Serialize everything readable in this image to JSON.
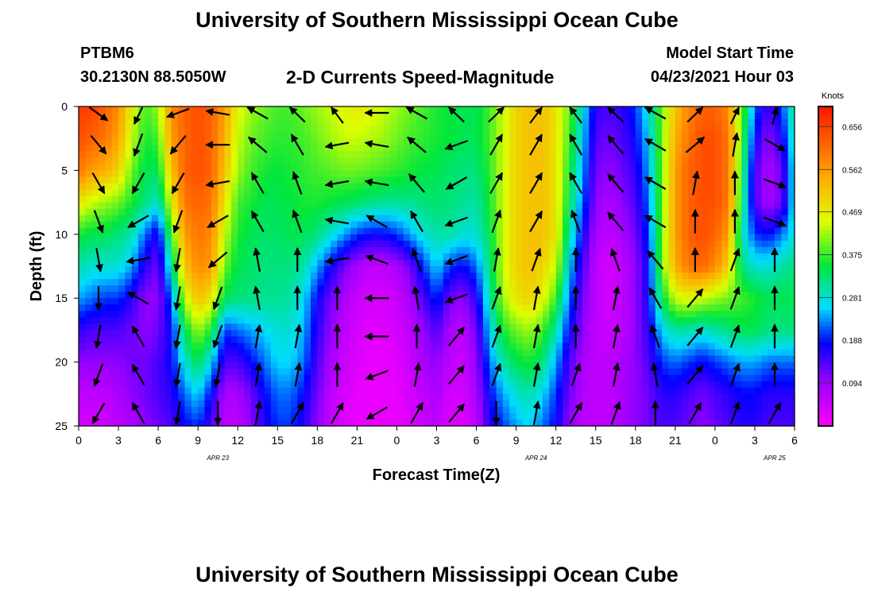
{
  "header": {
    "title": "University of Southern Mississippi Ocean Cube",
    "station": "PTBM6",
    "coordinates": "30.2130N  88.5050W",
    "subtitle": "2-D Currents Speed-Magnitude",
    "model_start_label": "Model Start Time",
    "model_start_value": "04/23/2021 Hour 03"
  },
  "footer": {
    "title": "University of Southern Mississippi Ocean Cube"
  },
  "chart_data": {
    "type": "heatmap",
    "title": "2-D Currents Speed-Magnitude",
    "xlabel": "Forecast Time(Z)",
    "ylabel": "Depth (ft)",
    "x_ticks": [
      "0",
      "3",
      "6",
      "9",
      "12",
      "15",
      "18",
      "21",
      "0",
      "3",
      "6",
      "9",
      "12",
      "15",
      "18",
      "21",
      "0",
      "3",
      "6"
    ],
    "date_labels": [
      {
        "label": "APR  23",
        "tick_index": 3.5
      },
      {
        "label": "APR  24",
        "tick_index": 11.5
      },
      {
        "label": "APR  25",
        "tick_index": 17.5
      }
    ],
    "y_ticks": [
      0,
      5,
      10,
      15,
      20,
      25
    ],
    "ylim": [
      0,
      25
    ],
    "xlim_hours": [
      0,
      54
    ],
    "colorbar": {
      "unit": "Knots",
      "ticks": [
        "0.656",
        "0.562",
        "0.469",
        "0.375",
        "0.281",
        "0.188",
        "0.094"
      ],
      "range": [
        0.0,
        0.7
      ]
    },
    "speed_columns_hours": [
      0,
      1,
      2,
      3,
      4,
      5,
      6,
      7,
      8,
      9,
      10,
      11,
      12,
      13,
      14,
      15,
      16,
      17,
      18,
      19,
      20,
      21,
      22,
      23,
      24,
      25,
      26,
      27,
      28,
      29,
      30,
      31,
      32,
      33,
      34,
      35,
      36,
      37,
      38,
      39,
      40,
      41,
      42,
      43,
      44,
      45,
      46,
      47,
      48,
      49,
      50,
      51,
      52,
      53,
      54
    ],
    "speed_rows_depth_ft": [
      0,
      2.5,
      5,
      7.5,
      10,
      12.5,
      15,
      17.5,
      20,
      22.5,
      25
    ],
    "speed_knots": [
      [
        0.66,
        0.66,
        0.62,
        0.58,
        0.46,
        0.38,
        0.42,
        0.58,
        0.62,
        0.64,
        0.62,
        0.56,
        0.46,
        0.42,
        0.4,
        0.38,
        0.38,
        0.4,
        0.42,
        0.44,
        0.46,
        0.47,
        0.46,
        0.44,
        0.42,
        0.4,
        0.38,
        0.36,
        0.35,
        0.34,
        0.34,
        0.38,
        0.44,
        0.5,
        0.52,
        0.52,
        0.48,
        0.4,
        0.28,
        0.16,
        0.14,
        0.16,
        0.2,
        0.28,
        0.4,
        0.52,
        0.58,
        0.62,
        0.62,
        0.58,
        0.4,
        0.22,
        0.14,
        0.2,
        0.32
      ],
      [
        0.64,
        0.62,
        0.6,
        0.55,
        0.44,
        0.36,
        0.38,
        0.56,
        0.62,
        0.64,
        0.62,
        0.54,
        0.44,
        0.4,
        0.38,
        0.37,
        0.37,
        0.38,
        0.4,
        0.42,
        0.44,
        0.44,
        0.43,
        0.42,
        0.4,
        0.38,
        0.37,
        0.36,
        0.35,
        0.34,
        0.34,
        0.38,
        0.44,
        0.5,
        0.52,
        0.52,
        0.48,
        0.38,
        0.26,
        0.14,
        0.12,
        0.14,
        0.18,
        0.26,
        0.4,
        0.54,
        0.6,
        0.64,
        0.64,
        0.6,
        0.38,
        0.18,
        0.1,
        0.16,
        0.3
      ],
      [
        0.6,
        0.56,
        0.54,
        0.5,
        0.4,
        0.34,
        0.34,
        0.52,
        0.62,
        0.64,
        0.62,
        0.52,
        0.42,
        0.38,
        0.36,
        0.35,
        0.36,
        0.37,
        0.38,
        0.39,
        0.4,
        0.4,
        0.39,
        0.38,
        0.37,
        0.36,
        0.35,
        0.34,
        0.33,
        0.32,
        0.32,
        0.37,
        0.44,
        0.5,
        0.52,
        0.52,
        0.48,
        0.36,
        0.24,
        0.12,
        0.1,
        0.12,
        0.16,
        0.24,
        0.4,
        0.56,
        0.62,
        0.64,
        0.64,
        0.6,
        0.36,
        0.14,
        0.08,
        0.12,
        0.28
      ],
      [
        0.48,
        0.44,
        0.42,
        0.4,
        0.36,
        0.32,
        0.28,
        0.46,
        0.6,
        0.62,
        0.6,
        0.48,
        0.38,
        0.36,
        0.34,
        0.34,
        0.35,
        0.36,
        0.36,
        0.35,
        0.34,
        0.33,
        0.32,
        0.31,
        0.31,
        0.31,
        0.32,
        0.33,
        0.32,
        0.31,
        0.3,
        0.36,
        0.44,
        0.5,
        0.52,
        0.52,
        0.48,
        0.34,
        0.22,
        0.1,
        0.08,
        0.1,
        0.14,
        0.22,
        0.4,
        0.56,
        0.62,
        0.64,
        0.64,
        0.6,
        0.34,
        0.14,
        0.08,
        0.12,
        0.28
      ],
      [
        0.36,
        0.34,
        0.34,
        0.32,
        0.3,
        0.22,
        0.16,
        0.38,
        0.56,
        0.6,
        0.58,
        0.44,
        0.36,
        0.34,
        0.33,
        0.33,
        0.34,
        0.34,
        0.32,
        0.28,
        0.24,
        0.2,
        0.18,
        0.18,
        0.2,
        0.24,
        0.28,
        0.3,
        0.3,
        0.28,
        0.28,
        0.34,
        0.44,
        0.5,
        0.52,
        0.52,
        0.48,
        0.3,
        0.18,
        0.08,
        0.06,
        0.08,
        0.12,
        0.2,
        0.4,
        0.56,
        0.62,
        0.64,
        0.62,
        0.56,
        0.3,
        0.2,
        0.18,
        0.22,
        0.28
      ],
      [
        0.3,
        0.28,
        0.28,
        0.28,
        0.24,
        0.16,
        0.12,
        0.3,
        0.52,
        0.58,
        0.56,
        0.4,
        0.34,
        0.33,
        0.32,
        0.32,
        0.32,
        0.3,
        0.24,
        0.18,
        0.12,
        0.08,
        0.06,
        0.06,
        0.08,
        0.12,
        0.2,
        0.26,
        0.2,
        0.18,
        0.22,
        0.32,
        0.44,
        0.5,
        0.52,
        0.5,
        0.44,
        0.26,
        0.14,
        0.06,
        0.04,
        0.06,
        0.1,
        0.18,
        0.4,
        0.54,
        0.6,
        0.62,
        0.58,
        0.5,
        0.32,
        0.28,
        0.28,
        0.3,
        0.32
      ],
      [
        0.24,
        0.22,
        0.2,
        0.2,
        0.16,
        0.1,
        0.1,
        0.22,
        0.44,
        0.52,
        0.48,
        0.34,
        0.32,
        0.32,
        0.31,
        0.31,
        0.3,
        0.26,
        0.18,
        0.12,
        0.08,
        0.05,
        0.04,
        0.04,
        0.05,
        0.08,
        0.14,
        0.2,
        0.12,
        0.1,
        0.16,
        0.3,
        0.42,
        0.48,
        0.5,
        0.46,
        0.38,
        0.22,
        0.12,
        0.06,
        0.04,
        0.06,
        0.1,
        0.18,
        0.34,
        0.44,
        0.46,
        0.44,
        0.42,
        0.4,
        0.38,
        0.36,
        0.34,
        0.34,
        0.34
      ],
      [
        0.16,
        0.14,
        0.14,
        0.14,
        0.12,
        0.1,
        0.12,
        0.18,
        0.34,
        0.42,
        0.36,
        0.2,
        0.22,
        0.24,
        0.26,
        0.28,
        0.28,
        0.24,
        0.16,
        0.1,
        0.06,
        0.04,
        0.03,
        0.03,
        0.04,
        0.06,
        0.1,
        0.14,
        0.08,
        0.06,
        0.12,
        0.26,
        0.36,
        0.4,
        0.42,
        0.38,
        0.3,
        0.18,
        0.1,
        0.06,
        0.05,
        0.06,
        0.1,
        0.16,
        0.26,
        0.3,
        0.3,
        0.28,
        0.3,
        0.32,
        0.34,
        0.34,
        0.32,
        0.32,
        0.32
      ],
      [
        0.1,
        0.1,
        0.1,
        0.1,
        0.12,
        0.12,
        0.14,
        0.18,
        0.28,
        0.34,
        0.26,
        0.14,
        0.14,
        0.18,
        0.22,
        0.26,
        0.26,
        0.22,
        0.14,
        0.08,
        0.05,
        0.03,
        0.02,
        0.02,
        0.03,
        0.05,
        0.08,
        0.1,
        0.06,
        0.05,
        0.1,
        0.22,
        0.3,
        0.34,
        0.36,
        0.32,
        0.24,
        0.14,
        0.08,
        0.06,
        0.06,
        0.08,
        0.1,
        0.14,
        0.2,
        0.22,
        0.2,
        0.18,
        0.2,
        0.22,
        0.24,
        0.24,
        0.22,
        0.22,
        0.22
      ],
      [
        0.06,
        0.06,
        0.06,
        0.08,
        0.1,
        0.12,
        0.14,
        0.16,
        0.22,
        0.26,
        0.18,
        0.08,
        0.08,
        0.12,
        0.18,
        0.22,
        0.22,
        0.18,
        0.12,
        0.06,
        0.04,
        0.02,
        0.02,
        0.02,
        0.02,
        0.04,
        0.06,
        0.08,
        0.04,
        0.04,
        0.08,
        0.18,
        0.24,
        0.28,
        0.3,
        0.26,
        0.2,
        0.12,
        0.07,
        0.06,
        0.06,
        0.08,
        0.1,
        0.12,
        0.16,
        0.16,
        0.14,
        0.12,
        0.14,
        0.16,
        0.18,
        0.18,
        0.16,
        0.16,
        0.16
      ],
      [
        0.04,
        0.04,
        0.05,
        0.06,
        0.08,
        0.1,
        0.12,
        0.14,
        0.18,
        0.2,
        0.14,
        0.06,
        0.06,
        0.1,
        0.16,
        0.2,
        0.2,
        0.16,
        0.1,
        0.05,
        0.03,
        0.02,
        0.02,
        0.02,
        0.02,
        0.03,
        0.05,
        0.06,
        0.03,
        0.03,
        0.06,
        0.16,
        0.2,
        0.24,
        0.26,
        0.22,
        0.18,
        0.1,
        0.06,
        0.06,
        0.06,
        0.08,
        0.1,
        0.12,
        0.14,
        0.14,
        0.12,
        0.1,
        0.12,
        0.14,
        0.16,
        0.16,
        0.14,
        0.14,
        0.14
      ]
    ],
    "vectors_hours": [
      1.5,
      4.5,
      7.5,
      10.5,
      13.5,
      16.5,
      19.5,
      22.5,
      25.5,
      28.5,
      31.5,
      34.5,
      37.5,
      40.5,
      43.5,
      46.5,
      49.5,
      52.5
    ],
    "vectors_depth_ft": [
      0.5,
      3,
      6,
      9,
      12,
      15,
      18,
      21,
      24
    ],
    "vector_direction_deg": [
      [
        130,
        200,
        250,
        280,
        300,
        320,
        330,
        270,
        300,
        320,
        40,
        30,
        330,
        320,
        300,
        40,
        20,
        10
      ],
      [
        140,
        200,
        220,
        270,
        310,
        330,
        260,
        280,
        310,
        250,
        30,
        30,
        330,
        320,
        300,
        50,
        10,
        120
      ],
      [
        150,
        210,
        210,
        260,
        330,
        340,
        260,
        280,
        320,
        240,
        30,
        30,
        330,
        320,
        300,
        10,
        0,
        110
      ],
      [
        160,
        240,
        200,
        240,
        330,
        340,
        280,
        300,
        330,
        250,
        20,
        30,
        340,
        320,
        300,
        0,
        0,
        110
      ],
      [
        170,
        260,
        190,
        230,
        350,
        0,
        260,
        290,
        340,
        250,
        10,
        20,
        0,
        340,
        320,
        0,
        20,
        0
      ],
      [
        180,
        300,
        190,
        200,
        350,
        0,
        0,
        270,
        350,
        250,
        20,
        10,
        0,
        10,
        330,
        40,
        20,
        0
      ],
      [
        190,
        330,
        190,
        200,
        10,
        10,
        0,
        270,
        0,
        40,
        20,
        10,
        0,
        10,
        340,
        40,
        20,
        0
      ],
      [
        200,
        330,
        190,
        190,
        10,
        10,
        0,
        250,
        10,
        40,
        20,
        10,
        20,
        10,
        350,
        40,
        20,
        0
      ],
      [
        210,
        330,
        190,
        180,
        10,
        30,
        30,
        240,
        30,
        40,
        180,
        10,
        30,
        20,
        0,
        30,
        20,
        30
      ]
    ]
  }
}
